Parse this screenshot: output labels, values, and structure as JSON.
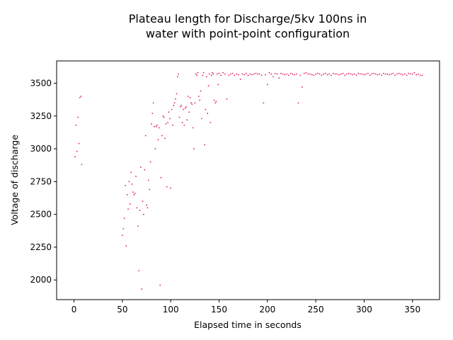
{
  "chart_data": {
    "type": "scatter",
    "title": [
      "Plateau length for Discharge/5kv 100ns in",
      "water with point-point configuration"
    ],
    "xlabel": "Elapsed time in seconds",
    "ylabel": "Voltage of discharge",
    "xlim": [
      -18,
      378
    ],
    "ylim": [
      1850,
      3670
    ],
    "xticks": [
      0,
      50,
      100,
      150,
      200,
      250,
      300,
      350
    ],
    "yticks": [
      2000,
      2250,
      2500,
      2750,
      3000,
      3250,
      3500
    ],
    "grid": false,
    "marker_color": "#e0195a",
    "series": [
      {
        "x": [
          1,
          2,
          3,
          4,
          5,
          6,
          7,
          8,
          50,
          51,
          52,
          53,
          54,
          55,
          56,
          57,
          58,
          59,
          60,
          61,
          62,
          63,
          64,
          65,
          66,
          67,
          68,
          69,
          70,
          71,
          72,
          73,
          74,
          75,
          76,
          77,
          78,
          79,
          80,
          81,
          82,
          83,
          84,
          85,
          86,
          87,
          88,
          89,
          90,
          91,
          92,
          93,
          94,
          95,
          96,
          97,
          98,
          99,
          100,
          101,
          102,
          103,
          104,
          105,
          106,
          107,
          108,
          109,
          110,
          111,
          112,
          113,
          114,
          115,
          116,
          117,
          118,
          119,
          120,
          121,
          122,
          123,
          124,
          125,
          126,
          127,
          128,
          129,
          130,
          131,
          132,
          133,
          134,
          135,
          136,
          137,
          138,
          139,
          140,
          141,
          142,
          143,
          144,
          145,
          146,
          147,
          148,
          149,
          150,
          152,
          154,
          156,
          158,
          160,
          162,
          164,
          166,
          168,
          170,
          172,
          174,
          176,
          178,
          180,
          182,
          184,
          186,
          188,
          190,
          192,
          194,
          196,
          198,
          200,
          202,
          204,
          206,
          208,
          210,
          212,
          214,
          216,
          218,
          220,
          222,
          224,
          226,
          228,
          230,
          232,
          234,
          236,
          238,
          240,
          242,
          244,
          246,
          248,
          250,
          252,
          254,
          256,
          258,
          260,
          262,
          264,
          266,
          268,
          270,
          272,
          274,
          276,
          278,
          280,
          282,
          284,
          286,
          288,
          290,
          292,
          294,
          296,
          298,
          300,
          302,
          304,
          306,
          308,
          310,
          312,
          314,
          316,
          318,
          320,
          322,
          324,
          326,
          328,
          330,
          332,
          334,
          336,
          338,
          340,
          342,
          344,
          346,
          348,
          350,
          352,
          354,
          356,
          358,
          360
        ],
        "y": [
          2940,
          3180,
          2980,
          3240,
          3040,
          3390,
          3400,
          2880,
          2340,
          2390,
          2470,
          2720,
          2260,
          2650,
          2540,
          2750,
          2580,
          2820,
          2730,
          2670,
          2650,
          2660,
          2790,
          2550,
          2410,
          2070,
          2530,
          2860,
          1930,
          2600,
          2500,
          2840,
          3100,
          2570,
          2550,
          2760,
          2690,
          2900,
          3190,
          3270,
          3350,
          3170,
          3000,
          3170,
          3180,
          3070,
          3160,
          1960,
          2780,
          3100,
          3250,
          3240,
          3080,
          3190,
          2710,
          3200,
          3280,
          3230,
          2700,
          3300,
          3180,
          3330,
          3350,
          3380,
          3420,
          3550,
          3570,
          3240,
          3320,
          3330,
          3200,
          3300,
          3180,
          3310,
          3320,
          3220,
          3400,
          3280,
          3390,
          3350,
          3340,
          3160,
          3000,
          3350,
          3570,
          3560,
          3580,
          3400,
          3370,
          3440,
          3230,
          3560,
          3580,
          3030,
          3300,
          3550,
          3270,
          3480,
          3570,
          3200,
          3560,
          3580,
          3570,
          3370,
          3350,
          3360,
          3570,
          3490,
          3575,
          3560,
          3580,
          3570,
          3380,
          3560,
          3570,
          3575,
          3560,
          3570,
          3565,
          3530,
          3570,
          3565,
          3575,
          3560,
          3570,
          3565,
          3570,
          3575,
          3570,
          3570,
          3560,
          3350,
          3565,
          3490,
          3580,
          3570,
          3550,
          3575,
          3570,
          3540,
          3575,
          3570,
          3565,
          3570,
          3560,
          3575,
          3570,
          3565,
          3570,
          3350,
          3560,
          3470,
          3575,
          3580,
          3570,
          3570,
          3565,
          3560,
          3570,
          3575,
          3570,
          3560,
          3570,
          3575,
          3565,
          3570,
          3560,
          3575,
          3570,
          3570,
          3565,
          3570,
          3575,
          3560,
          3570,
          3575,
          3570,
          3565,
          3570,
          3560,
          3575,
          3570,
          3570,
          3565,
          3570,
          3575,
          3560,
          3570,
          3575,
          3570,
          3565,
          3570,
          3560,
          3575,
          3570,
          3570,
          3565,
          3570,
          3575,
          3560,
          3570,
          3575,
          3570,
          3565,
          3570,
          3560,
          3575,
          3570,
          3570,
          3580,
          3565,
          3570,
          3560,
          3560
        ]
      }
    ]
  }
}
